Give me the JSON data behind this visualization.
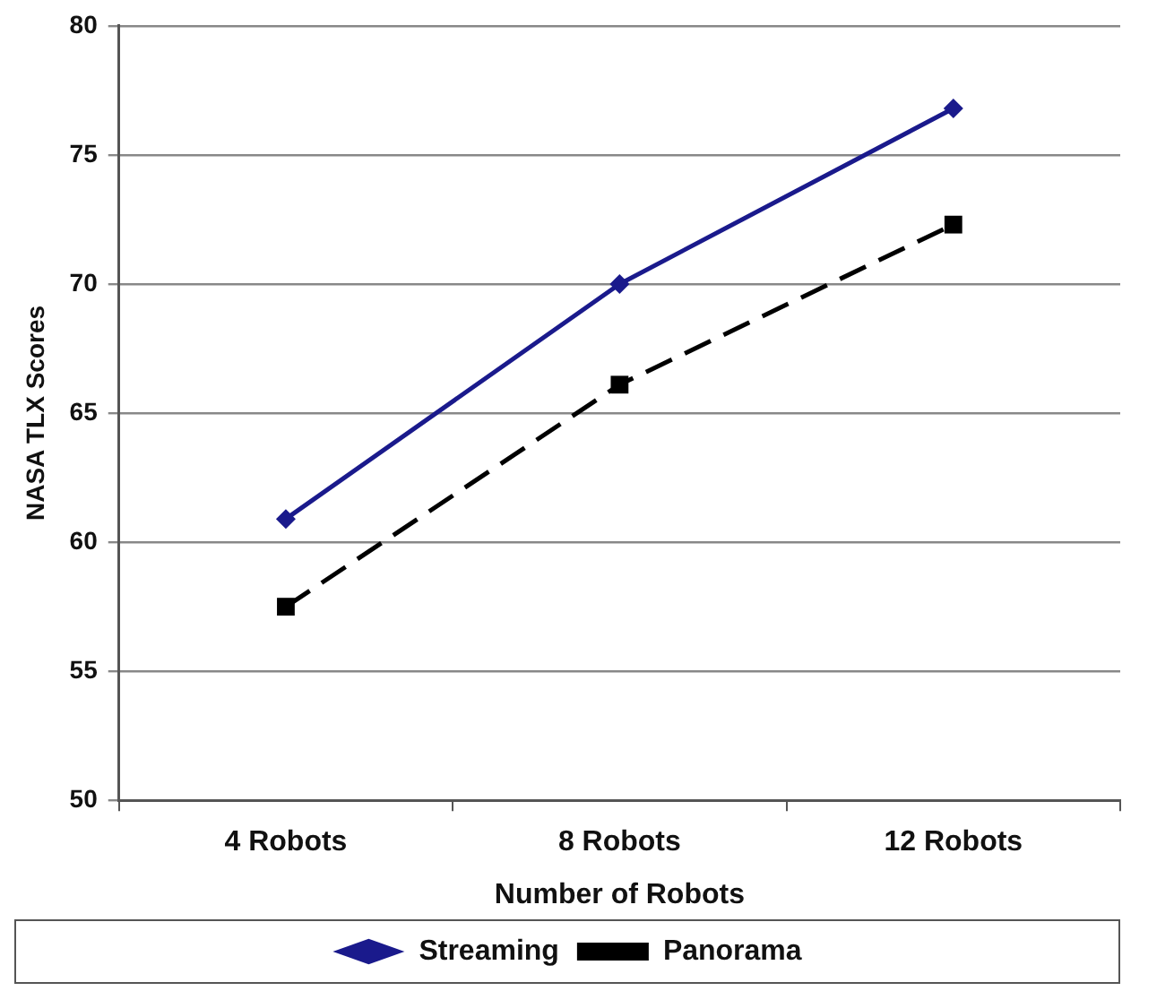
{
  "chart_data": {
    "type": "line",
    "xlabel": "Number of Robots",
    "ylabel": "NASA TLX Scores",
    "categories": [
      "4 Robots",
      "8 Robots",
      "12 Robots"
    ],
    "series": [
      {
        "name": "Streaming",
        "color": "#1a1a8c",
        "values": [
          60.9,
          70.0,
          76.8
        ],
        "marker": "diamond",
        "line_style": "solid"
      },
      {
        "name": "Panorama",
        "color": "#000000",
        "values": [
          57.5,
          66.1,
          72.3
        ],
        "marker": "square",
        "line_style": "dashed"
      }
    ],
    "ylim": [
      50,
      80
    ],
    "yticks": [
      50,
      55,
      60,
      65,
      70,
      75,
      80
    ],
    "grid": "y",
    "legend": "bottom"
  }
}
